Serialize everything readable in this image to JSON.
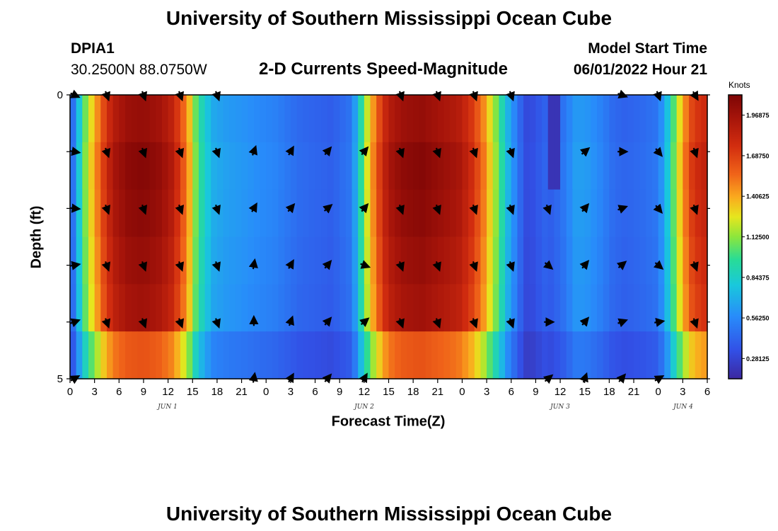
{
  "page": {
    "title": "University of Southern Mississippi Ocean Cube",
    "station_id": "DPIA1",
    "station_coords": "30.2500N  88.0750W",
    "model_start_label": "Model Start Time",
    "model_start_value": "06/01/2022 Hour 21",
    "footer_title": "University of Southern Mississippi Ocean Cube"
  },
  "chart_data": {
    "type": "heatmap",
    "title": "2-D Currents Speed-Magnitude",
    "xlabel": "Forecast Time(Z)",
    "ylabel": "Depth (ft)",
    "x_tick_labels": [
      "0",
      "3",
      "6",
      "9",
      "12",
      "15",
      "18",
      "21",
      "0",
      "3",
      "6",
      "9",
      "12",
      "15",
      "18",
      "21",
      "0",
      "3",
      "6",
      "9",
      "12",
      "15",
      "18",
      "21",
      "0",
      "3",
      "6"
    ],
    "x_range_hours": [
      0,
      78
    ],
    "date_labels": [
      {
        "label": "JUN 1",
        "hour": 10.5
      },
      {
        "label": "JUN 2",
        "hour": 34.5
      },
      {
        "label": "JUN 3",
        "hour": 58.5
      },
      {
        "label": "JUN 4",
        "hour": 75.5
      }
    ],
    "y_tick_labels": [
      "0",
      "5"
    ],
    "y_range_ft": [
      0,
      5
    ],
    "depth_levels_ft": [
      0,
      1,
      2,
      3,
      4,
      5
    ],
    "colorbar": {
      "unit_label": "Knots",
      "range": [
        0.140625,
        2.109375
      ],
      "tick_labels": [
        "1.96875",
        "1.68750",
        "1.40625",
        "1.12500",
        "0.84375",
        "0.56250",
        "0.28125"
      ],
      "tick_values": [
        1.96875,
        1.6875,
        1.40625,
        1.125,
        0.84375,
        0.5625,
        0.28125
      ]
    },
    "speed_profile": {
      "hours": [
        0,
        0.7,
        1.5,
        2.5,
        3.5,
        4.5,
        5.5,
        7,
        9,
        11,
        12.5,
        13.5,
        14.5,
        15.5,
        16.5,
        17.5,
        19,
        21,
        23,
        25,
        28,
        32,
        34.5,
        35.5,
        36.5,
        37.5,
        38.5,
        39.5,
        41,
        43,
        45,
        47.5,
        49,
        50.5,
        51.5,
        52.5,
        53.5,
        55,
        56,
        57,
        58,
        59,
        60.5,
        62,
        63.5,
        65,
        66.5,
        68,
        70,
        72,
        73,
        74,
        75,
        76,
        77,
        78
      ],
      "values_knots": [
        0.35,
        0.6,
        1.0,
        1.3,
        1.55,
        1.8,
        1.95,
        2.05,
        2.08,
        2.02,
        1.9,
        1.7,
        1.45,
        1.05,
        0.85,
        0.7,
        0.65,
        0.62,
        0.58,
        0.55,
        0.45,
        0.4,
        0.5,
        0.9,
        1.3,
        1.6,
        1.85,
        1.98,
        2.05,
        2.08,
        2.02,
        1.95,
        1.8,
        1.55,
        1.3,
        1.05,
        0.75,
        0.45,
        0.3,
        0.35,
        0.42,
        0.4,
        0.5,
        0.65,
        0.62,
        0.55,
        0.45,
        0.42,
        0.45,
        0.5,
        0.75,
        1.1,
        1.45,
        1.7,
        1.8,
        1.85
      ]
    },
    "depth_factor": [
      0.97,
      1.0,
      0.99,
      0.97,
      0.95,
      0.78
    ],
    "arrows": {
      "hours": [
        0.5,
        4.5,
        9,
        13.5,
        18,
        22.5,
        27,
        31.5,
        36,
        40.5,
        45,
        49.5,
        54,
        58.5,
        63,
        67.5,
        72,
        76.5
      ],
      "rows": [
        [
          115,
          160,
          160,
          160,
          160,
          null,
          null,
          null,
          null,
          160,
          160,
          160,
          160,
          null,
          null,
          110,
          160,
          150
        ],
        [
          100,
          160,
          160,
          160,
          160,
          20,
          30,
          40,
          40,
          160,
          160,
          160,
          160,
          null,
          50,
          90,
          140,
          160
        ],
        [
          95,
          160,
          160,
          160,
          160,
          30,
          40,
          50,
          40,
          160,
          160,
          160,
          160,
          160,
          40,
          70,
          140,
          160
        ],
        [
          80,
          160,
          160,
          160,
          160,
          10,
          30,
          40,
          110,
          160,
          160,
          160,
          160,
          130,
          40,
          50,
          130,
          160
        ],
        [
          70,
          160,
          160,
          160,
          160,
          0,
          20,
          40,
          50,
          160,
          160,
          160,
          160,
          90,
          40,
          70,
          80,
          160
        ],
        [
          60,
          null,
          null,
          null,
          null,
          10,
          30,
          40,
          30,
          null,
          null,
          null,
          null,
          50,
          20,
          40,
          60,
          null
        ]
      ]
    }
  }
}
